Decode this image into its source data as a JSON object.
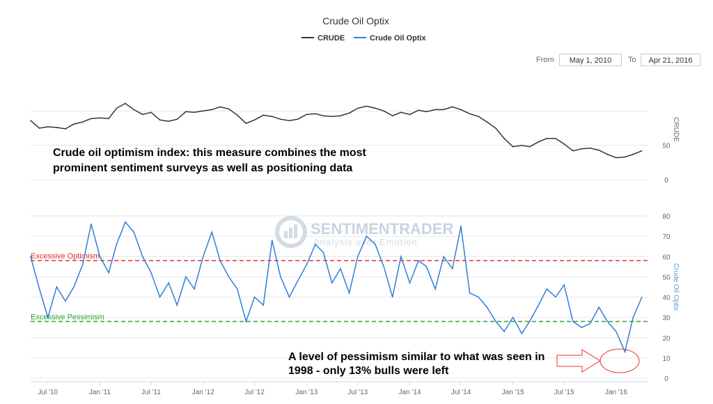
{
  "range": {
    "from_label": "From",
    "from_value": "May 1, 2010",
    "to_label": "To",
    "to_value": "Apr 21, 2016"
  },
  "watermark": {
    "name": "SENTIMENTRADER",
    "tagline": "Analysis over Emotion"
  },
  "annotations": {
    "top_line1": "Crude oil optimism index: this measure combines the most",
    "top_line2": "prominent sentiment surveys as well as positioning data",
    "bottom_line1": "A level of pessimism similar to what was seen in",
    "bottom_line2": "1998 - only 13% bulls were left"
  },
  "chart_data": {
    "type": "line",
    "title": "Crude Oil Optix",
    "legend": [
      {
        "name": "CRUDE",
        "color": "#333333"
      },
      {
        "name": "Crude Oil Optix",
        "color": "#2f7ed8"
      }
    ],
    "legend_position": "top-center",
    "x_tick_labels": [
      "Jul '10",
      "Jan '11",
      "Jul '11",
      "Jan '12",
      "Jul '12",
      "Jan '13",
      "Jul '13",
      "Jan '14",
      "Jul '14",
      "Jan '15",
      "Jul '15",
      "Jan '16"
    ],
    "x_range": [
      "2010-05-01",
      "2016-04-21"
    ],
    "crude_axis": {
      "title": "CRUDE",
      "ticks": [
        0,
        50
      ],
      "ylim": [
        0,
        150
      ]
    },
    "optix_axis": {
      "title": "Crude Oil Optix",
      "ticks": [
        0,
        10,
        20,
        30,
        40,
        50,
        60,
        70,
        80
      ],
      "ylim": [
        0,
        80
      ]
    },
    "reference_lines": [
      {
        "label": "Excessive Optimism",
        "value": 58,
        "color": "#e03030"
      },
      {
        "label": "Excessive Pessimism",
        "value": 28,
        "color": "#2ea02e"
      }
    ],
    "series": [
      {
        "name": "CRUDE",
        "x": [
          "2010-05-01",
          "2010-06-01",
          "2010-07-01",
          "2010-08-01",
          "2010-09-01",
          "2010-10-01",
          "2010-11-01",
          "2010-12-01",
          "2011-01-01",
          "2011-02-01",
          "2011-03-01",
          "2011-04-01",
          "2011-05-01",
          "2011-06-01",
          "2011-07-01",
          "2011-08-01",
          "2011-09-01",
          "2011-10-01",
          "2011-11-01",
          "2011-12-01",
          "2012-01-01",
          "2012-02-01",
          "2012-03-01",
          "2012-04-01",
          "2012-05-01",
          "2012-06-01",
          "2012-07-01",
          "2012-08-01",
          "2012-09-01",
          "2012-10-01",
          "2012-11-01",
          "2012-12-01",
          "2013-01-01",
          "2013-02-01",
          "2013-03-01",
          "2013-04-01",
          "2013-05-01",
          "2013-06-01",
          "2013-07-01",
          "2013-08-01",
          "2013-09-01",
          "2013-10-01",
          "2013-11-01",
          "2013-12-01",
          "2014-01-01",
          "2014-02-01",
          "2014-03-01",
          "2014-04-01",
          "2014-05-01",
          "2014-06-01",
          "2014-07-01",
          "2014-08-01",
          "2014-09-01",
          "2014-10-01",
          "2014-11-01",
          "2014-12-01",
          "2015-01-01",
          "2015-02-01",
          "2015-03-01",
          "2015-04-01",
          "2015-05-01",
          "2015-06-01",
          "2015-07-01",
          "2015-08-01",
          "2015-09-01",
          "2015-10-01",
          "2015-11-01",
          "2015-12-01",
          "2016-01-01",
          "2016-02-01",
          "2016-03-01",
          "2016-04-01"
        ],
        "values": [
          86,
          75,
          77,
          76,
          74,
          81,
          84,
          89,
          90,
          89,
          104,
          111,
          102,
          95,
          98,
          87,
          85,
          88,
          99,
          98,
          100,
          102,
          106,
          103,
          94,
          82,
          87,
          94,
          92,
          88,
          86,
          88,
          95,
          96,
          93,
          92,
          93,
          97,
          104,
          107,
          104,
          100,
          93,
          98,
          95,
          101,
          99,
          102,
          102,
          106,
          102,
          96,
          92,
          84,
          75,
          60,
          48,
          50,
          48,
          55,
          60,
          60,
          52,
          42,
          45,
          46,
          43,
          37,
          32,
          33,
          37,
          42
        ]
      },
      {
        "name": "Crude Oil Optix",
        "x": [
          "2010-05-01",
          "2010-06-01",
          "2010-07-01",
          "2010-08-01",
          "2010-09-01",
          "2010-10-01",
          "2010-11-01",
          "2010-12-01",
          "2011-01-01",
          "2011-02-01",
          "2011-03-01",
          "2011-04-01",
          "2011-05-01",
          "2011-06-01",
          "2011-07-01",
          "2011-08-01",
          "2011-09-01",
          "2011-10-01",
          "2011-11-01",
          "2011-12-01",
          "2012-01-01",
          "2012-02-01",
          "2012-03-01",
          "2012-04-01",
          "2012-05-01",
          "2012-06-01",
          "2012-07-01",
          "2012-08-01",
          "2012-09-01",
          "2012-10-01",
          "2012-11-01",
          "2012-12-01",
          "2013-01-01",
          "2013-02-01",
          "2013-03-01",
          "2013-04-01",
          "2013-05-01",
          "2013-06-01",
          "2013-07-01",
          "2013-08-01",
          "2013-09-01",
          "2013-10-01",
          "2013-11-01",
          "2013-12-01",
          "2014-01-01",
          "2014-02-01",
          "2014-03-01",
          "2014-04-01",
          "2014-05-01",
          "2014-06-01",
          "2014-07-01",
          "2014-08-01",
          "2014-09-01",
          "2014-10-01",
          "2014-11-01",
          "2014-12-01",
          "2015-01-01",
          "2015-02-01",
          "2015-03-01",
          "2015-04-01",
          "2015-05-01",
          "2015-06-01",
          "2015-07-01",
          "2015-08-01",
          "2015-09-01",
          "2015-10-01",
          "2015-11-01",
          "2015-12-01",
          "2016-01-01",
          "2016-02-01",
          "2016-03-01",
          "2016-04-01"
        ],
        "values": [
          60,
          44,
          30,
          45,
          38,
          45,
          56,
          76,
          60,
          52,
          66,
          77,
          72,
          60,
          52,
          40,
          47,
          36,
          50,
          44,
          60,
          72,
          58,
          50,
          44,
          28,
          40,
          36,
          68,
          50,
          40,
          48,
          56,
          66,
          62,
          47,
          54,
          42,
          60,
          70,
          66,
          55,
          40,
          60,
          47,
          58,
          55,
          44,
          60,
          54,
          75,
          42,
          40,
          35,
          28,
          23,
          30,
          22,
          28,
          36,
          44,
          40,
          46,
          28,
          25,
          27,
          35,
          28,
          23,
          13,
          30,
          40
        ]
      }
    ]
  }
}
